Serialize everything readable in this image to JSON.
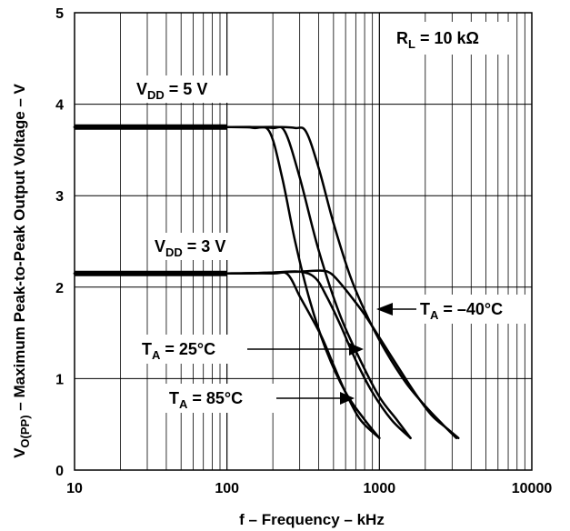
{
  "chart_data": {
    "type": "line",
    "xlabel": "f – Frequency – kHz",
    "ylabel": {
      "prefix": "V",
      "sub": "O(PP)",
      "rest": " – Maximum Peak-to-Peak Output Voltage – V"
    },
    "x_scale": "log",
    "xlim": [
      10,
      10000
    ],
    "ylim": [
      0,
      5
    ],
    "x_ticks": [
      10,
      100,
      1000,
      10000
    ],
    "x_tick_labels": [
      "10",
      "100",
      "1000",
      "10000"
    ],
    "y_ticks": [
      0,
      1,
      2,
      3,
      4,
      5
    ],
    "y_tick_labels": [
      "0",
      "1",
      "2",
      "3",
      "4",
      "5"
    ],
    "grid": true,
    "colors": {
      "line": "#000000",
      "grid": "#000000",
      "background": "#ffffff"
    },
    "annotations": {
      "rl": {
        "main": "R",
        "sub": "L",
        "rest": " = 10 kΩ"
      },
      "vdd5": {
        "main": "V",
        "sub": "DD",
        "rest": " = 5 V"
      },
      "vdd3": {
        "main": "V",
        "sub": "DD",
        "rest": " = 3 V"
      },
      "ta_m40": {
        "main": "T",
        "sub": "A",
        "rest": " = –40°C"
      },
      "ta_25": {
        "main": "T",
        "sub": "A",
        "rest": " = 25°C"
      },
      "ta_85": {
        "main": "T",
        "sub": "A",
        "rest": " = 85°C"
      }
    },
    "series": [
      {
        "x": [
          10,
          100,
          150,
          190,
          230,
          280,
          350,
          450,
          600,
          800,
          1000
        ],
        "y": [
          3.75,
          3.75,
          3.74,
          3.7,
          3.2,
          2.5,
          1.85,
          1.3,
          0.85,
          0.55,
          0.35
        ]
      },
      {
        "x": [
          10,
          100,
          150,
          200,
          240,
          300,
          400,
          550,
          750,
          1000,
          1300,
          1600
        ],
        "y": [
          3.75,
          3.75,
          3.75,
          3.74,
          3.7,
          3.2,
          2.4,
          1.7,
          1.2,
          0.8,
          0.55,
          0.35
        ]
      },
      {
        "x": [
          10,
          100,
          150,
          220,
          280,
          330,
          400,
          500,
          650,
          850,
          1100,
          1500,
          2000,
          2600,
          3200
        ],
        "y": [
          3.75,
          3.75,
          3.75,
          3.75,
          3.74,
          3.7,
          3.3,
          2.7,
          2.1,
          1.65,
          1.3,
          0.95,
          0.7,
          0.5,
          0.35
        ]
      },
      {
        "x": [
          10,
          100,
          200,
          250,
          300,
          350,
          420,
          500,
          600,
          750,
          1000
        ],
        "y": [
          2.15,
          2.15,
          2.15,
          2.14,
          1.9,
          1.7,
          1.45,
          1.15,
          0.85,
          0.55,
          0.35
        ]
      },
      {
        "x": [
          10,
          100,
          200,
          300,
          380,
          450,
          550,
          700,
          900,
          1200,
          1600
        ],
        "y": [
          2.15,
          2.15,
          2.16,
          2.17,
          2.1,
          1.9,
          1.6,
          1.2,
          0.85,
          0.55,
          0.35
        ]
      },
      {
        "x": [
          10,
          100,
          200,
          300,
          420,
          480,
          550,
          650,
          800,
          1000,
          1300,
          1700,
          2200,
          2800,
          3300
        ],
        "y": [
          2.15,
          2.15,
          2.16,
          2.17,
          2.18,
          2.15,
          2.05,
          1.9,
          1.7,
          1.45,
          1.15,
          0.85,
          0.6,
          0.45,
          0.35
        ]
      }
    ]
  }
}
